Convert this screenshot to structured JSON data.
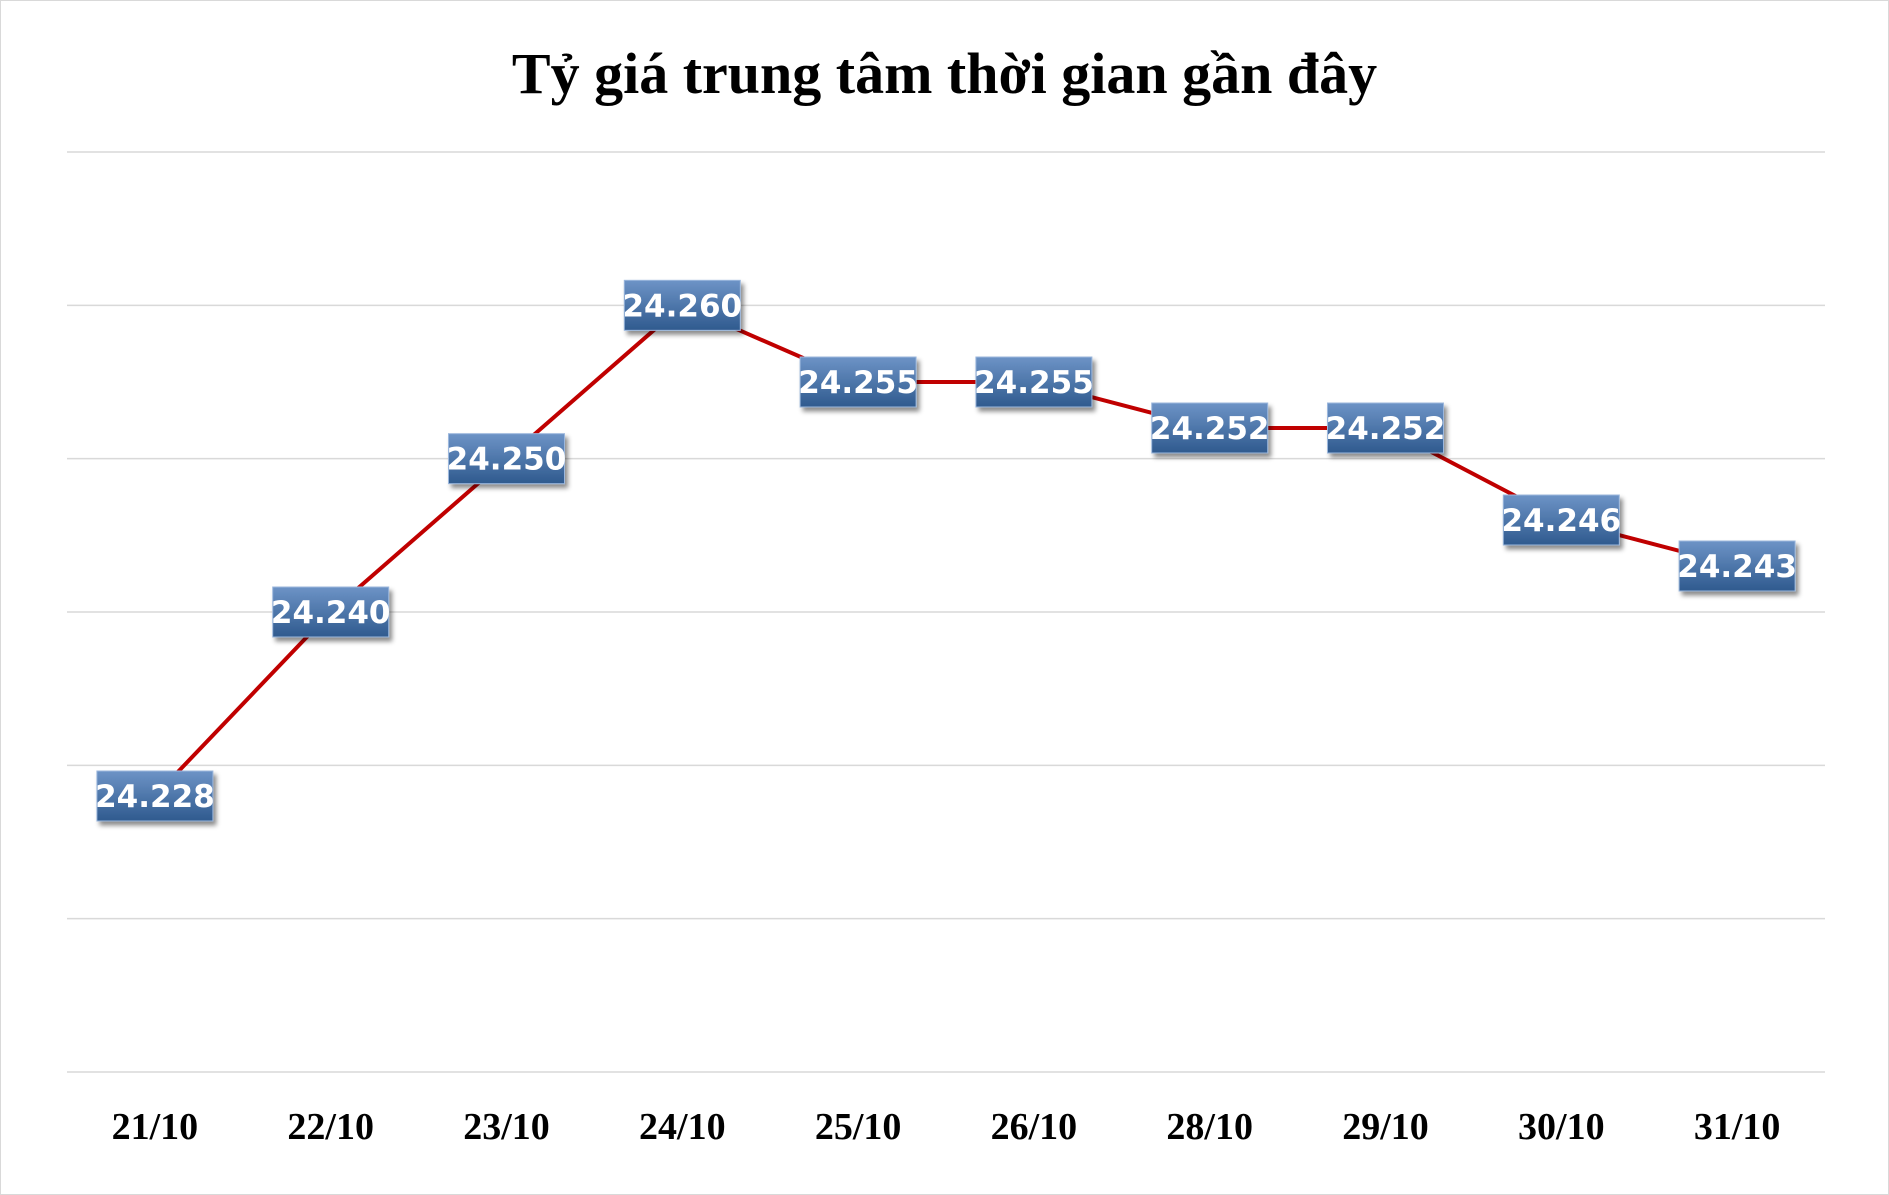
{
  "chart_data": {
    "type": "line",
    "title": "Tỷ giá trung tâm thời gian gần đây",
    "xlabel": "",
    "ylabel": "",
    "categories": [
      "21/10",
      "22/10",
      "23/10",
      "24/10",
      "25/10",
      "26/10",
      "28/10",
      "29/10",
      "30/10",
      "31/10"
    ],
    "series": [
      {
        "values": [
          24228,
          24240,
          24250,
          24260,
          24255,
          24255,
          24252,
          24252,
          24246,
          24243
        ],
        "labels": [
          "24.228",
          "24.240",
          "24.250",
          "24.260",
          "24.255",
          "24.255",
          "24.252",
          "24.252",
          "24.246",
          "24.243"
        ],
        "color": "#c00000"
      }
    ],
    "ylim": [
      24210,
      24270
    ],
    "yticks": [
      24210,
      24220,
      24230,
      24240,
      24250,
      24260,
      24270
    ],
    "grid": true,
    "show_y_axis_labels": false,
    "legend": "none",
    "label_color": "#4a74a8"
  }
}
